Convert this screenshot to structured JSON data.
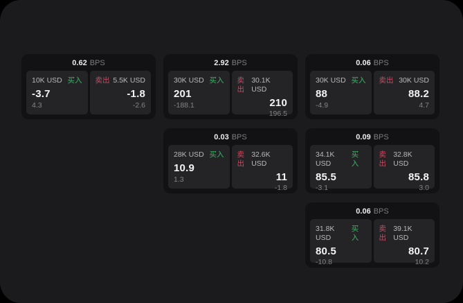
{
  "colors": {
    "page_backdrop": "#000000",
    "surface": "#1b1b1d",
    "card": "#121214",
    "panel": "#242427",
    "buy_green": "#44b06a",
    "sell_red": "#c94a60",
    "text_primary": "#f4f4f4",
    "text_secondary": "#b9b9b9",
    "text_muted": "#848484",
    "bps_unit_gray": "#7d7d7d"
  },
  "labels": {
    "bps_unit": "BPS",
    "buy": "买入",
    "sell": "卖出"
  },
  "cards": [
    {
      "bps": "0.62",
      "buy": {
        "amount": "10K USD",
        "value": "-3.7",
        "delta": "4.3"
      },
      "sell": {
        "amount": "5.5K USD",
        "value": "-1.8",
        "delta": "-2.6"
      }
    },
    {
      "bps": "2.92",
      "buy": {
        "amount": "30K USD",
        "value": "201",
        "delta": "-188.1"
      },
      "sell": {
        "amount": "30.1K USD",
        "value": "210",
        "delta": "196.5"
      }
    },
    {
      "bps": "0.06",
      "buy": {
        "amount": "30K USD",
        "value": "88",
        "delta": "-4.9"
      },
      "sell": {
        "amount": "30K USD",
        "value": "88.2",
        "delta": "4.7"
      }
    },
    {
      "bps": "0.03",
      "buy": {
        "amount": "28K USD",
        "value": "10.9",
        "delta": "1.3"
      },
      "sell": {
        "amount": "32.6K USD",
        "value": "11",
        "delta": "-1.8"
      }
    },
    {
      "bps": "0.09",
      "buy": {
        "amount": "34.1K USD",
        "value": "85.5",
        "delta": "-3.1"
      },
      "sell": {
        "amount": "32.8K USD",
        "value": "85.8",
        "delta": "3.0"
      }
    },
    {
      "bps": "0.06",
      "buy": {
        "amount": "31.8K USD",
        "value": "80.5",
        "delta": "-10.8"
      },
      "sell": {
        "amount": "39.1K USD",
        "value": "80.7",
        "delta": "10.2"
      }
    }
  ]
}
